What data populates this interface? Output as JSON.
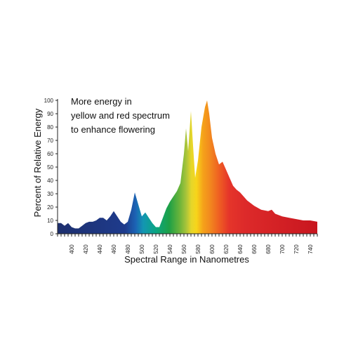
{
  "chart_data": {
    "type": "area",
    "ylabel": "Percent of Relative Energy",
    "xlabel": "Spectral Range in Nanometres",
    "annotation": [
      "More energy in",
      "yellow and red spectrum",
      "to enhance flowering"
    ],
    "ylim": [
      0,
      100
    ],
    "yticks": [
      0,
      10,
      20,
      30,
      40,
      50,
      60,
      70,
      80,
      90,
      100
    ],
    "xlim": [
      380,
      750
    ],
    "xticks": [
      400,
      420,
      440,
      460,
      480,
      500,
      520,
      540,
      560,
      580,
      600,
      620,
      640,
      660,
      680,
      700,
      720,
      740
    ],
    "grid": false,
    "series": [
      {
        "x": [
          380,
          385,
          390,
          395,
          400,
          405,
          410,
          415,
          420,
          425,
          430,
          435,
          440,
          445,
          450,
          455,
          460,
          465,
          470,
          475,
          480,
          485,
          490,
          495,
          500,
          505,
          510,
          515,
          520,
          525,
          530,
          535,
          540,
          545,
          550,
          555,
          560,
          563,
          566,
          570,
          573,
          576,
          580,
          585,
          590,
          593,
          596,
          600,
          605,
          610,
          615,
          620,
          625,
          630,
          635,
          640,
          650,
          660,
          670,
          680,
          685,
          690,
          700,
          710,
          720,
          730,
          740,
          750
        ],
        "y": [
          8,
          8,
          6,
          8,
          5,
          4,
          4,
          6,
          8,
          9,
          9,
          10,
          12,
          12,
          10,
          13,
          17,
          13,
          9,
          7,
          9,
          18,
          31,
          22,
          13,
          16,
          12,
          8,
          5,
          5,
          12,
          19,
          24,
          28,
          32,
          38,
          60,
          79,
          62,
          92,
          66,
          42,
          55,
          80,
          95,
          100,
          90,
          72,
          60,
          52,
          54,
          48,
          42,
          36,
          33,
          31,
          25,
          21,
          18,
          17,
          18,
          15,
          13,
          12,
          11,
          10,
          10,
          9
        ]
      }
    ]
  }
}
